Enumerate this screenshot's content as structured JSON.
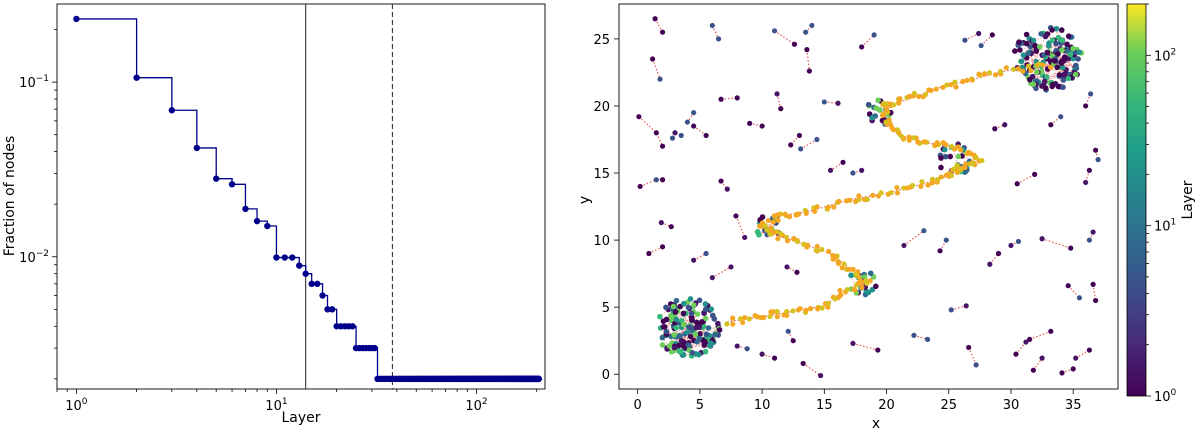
{
  "chart_data": [
    {
      "type": "line",
      "xlabel": "Layer",
      "ylabel": "Fraction of nodes",
      "x_scale": "log",
      "y_scale": "log",
      "xlim": [
        0.8,
        220
      ],
      "ylim": [
        0.00175,
        0.28
      ],
      "x_ticks": [
        {
          "value": 1,
          "label": "10",
          "exp": "0"
        },
        {
          "value": 10,
          "label": "10",
          "exp": "1"
        },
        {
          "value": 100,
          "label": "10",
          "exp": "2"
        }
      ],
      "y_ticks": [
        {
          "value": 0.01,
          "label": "10",
          "exp": "−2"
        },
        {
          "value": 0.1,
          "label": "10",
          "exp": "−1"
        }
      ],
      "series_color": "#00008b",
      "vlines": [
        {
          "x": 14,
          "style": "solid"
        },
        {
          "x": 38,
          "style": "dashed"
        }
      ],
      "points": [
        [
          1,
          0.23
        ],
        [
          2,
          0.106
        ],
        [
          3,
          0.069
        ],
        [
          4,
          0.042
        ],
        [
          5,
          0.028
        ],
        [
          6,
          0.026
        ],
        [
          7,
          0.0188
        ],
        [
          8,
          0.016
        ],
        [
          9,
          0.015
        ],
        [
          10,
          0.0099
        ],
        [
          11,
          0.0099
        ],
        [
          12,
          0.0099
        ],
        [
          13,
          0.0089
        ],
        [
          14,
          0.008
        ],
        [
          15,
          0.007
        ],
        [
          16,
          0.007
        ],
        [
          17,
          0.006
        ],
        [
          18,
          0.005
        ],
        [
          19,
          0.005
        ],
        [
          20,
          0.004
        ],
        [
          21,
          0.004
        ],
        [
          22,
          0.004
        ],
        [
          23,
          0.004
        ],
        [
          24,
          0.004
        ],
        [
          25,
          0.003
        ],
        [
          26,
          0.003
        ],
        [
          27,
          0.003
        ],
        [
          28,
          0.003
        ],
        [
          29,
          0.003
        ],
        [
          30,
          0.003
        ],
        [
          31,
          0.003
        ]
      ],
      "plateau": {
        "x_from": 32,
        "x_to": 205,
        "y": 0.002
      }
    },
    {
      "type": "scatter",
      "xlabel": "x",
      "ylabel": "y",
      "xlim": [
        -1.5,
        38.6
      ],
      "ylim": [
        -1.1,
        27.6
      ],
      "x_ticks": [
        0,
        5,
        10,
        15,
        20,
        25,
        30,
        35
      ],
      "y_ticks": [
        0,
        5,
        10,
        15,
        20,
        25
      ],
      "colorbar": {
        "label": "Layer",
        "scale": "log",
        "range": [
          1,
          200
        ],
        "colormap": "viridis",
        "ticks": [
          {
            "value": 1,
            "label": "10",
            "exp": "0"
          },
          {
            "value": 10,
            "label": "10",
            "exp": "1"
          },
          {
            "value": 100,
            "label": "10",
            "exp": "2"
          }
        ]
      },
      "edge_color": "#e8554e",
      "path_colors": [
        "#f5a623",
        "#d6c21f"
      ],
      "main_path": [
        [
          7.2,
          3.9
        ],
        [
          10,
          4.3
        ],
        [
          12,
          4.6
        ],
        [
          15,
          5.1
        ],
        [
          16.5,
          6.2
        ],
        [
          18.5,
          6.8
        ],
        [
          17,
          7.9
        ],
        [
          15.5,
          9
        ],
        [
          13,
          9.8
        ],
        [
          11,
          10.4
        ],
        [
          10,
          11.1
        ],
        [
          11.5,
          11.8
        ],
        [
          14,
          12.2
        ],
        [
          17,
          13
        ],
        [
          20,
          13.5
        ],
        [
          23,
          14.2
        ],
        [
          25,
          14.8
        ],
        [
          26,
          15.4
        ],
        [
          27.5,
          16
        ],
        [
          26,
          16.8
        ],
        [
          23,
          17.3
        ],
        [
          21,
          17.8
        ],
        [
          20,
          18.7
        ],
        [
          19.8,
          20.1
        ],
        [
          21.5,
          20.4
        ],
        [
          24,
          21.3
        ],
        [
          27,
          22
        ],
        [
          30,
          22.7
        ],
        [
          33.5,
          23.1
        ]
      ],
      "clusters": [
        {
          "center": [
            4,
            3.5
          ],
          "radius": 2.6,
          "count": 160
        },
        {
          "center": [
            33,
            23.5
          ],
          "radius": 2.8,
          "count": 170
        },
        {
          "center": [
            18,
            6.8
          ],
          "radius": 1.2,
          "count": 22
        },
        {
          "center": [
            19.5,
            19.5
          ],
          "radius": 1.2,
          "count": 20
        },
        {
          "center": [
            25.5,
            16
          ],
          "radius": 1.4,
          "count": 24
        },
        {
          "center": [
            10.5,
            11
          ],
          "radius": 1.2,
          "count": 16
        }
      ],
      "branches": [
        [
          [
            0.1,
            19.2
          ],
          [
            1.5,
            18
          ],
          [
            2,
            17
          ]
        ],
        [
          [
            1.4,
            26.5
          ],
          [
            2,
            25.5
          ]
        ],
        [
          [
            1.2,
            23.5
          ],
          [
            1.8,
            22
          ]
        ],
        [
          [
            0.2,
            14
          ],
          [
            1.5,
            14.5
          ],
          [
            2,
            14.5
          ]
        ],
        [
          [
            0.9,
            9
          ],
          [
            2,
            9.5
          ]
        ],
        [
          [
            1.9,
            11.3
          ],
          [
            2.7,
            11
          ]
        ],
        [
          [
            2.8,
            17.6
          ],
          [
            3,
            18
          ],
          [
            3.5,
            17.8
          ]
        ],
        [
          [
            4.5,
            18.5
          ],
          [
            5.5,
            17.8
          ]
        ],
        [
          [
            6,
            26
          ],
          [
            6.5,
            25
          ]
        ],
        [
          [
            6.7,
            20.5
          ],
          [
            8,
            20.6
          ]
        ],
        [
          [
            9,
            18.7
          ],
          [
            10,
            18.5
          ]
        ],
        [
          [
            11,
            25.6
          ],
          [
            12.6,
            24.6
          ]
        ],
        [
          [
            11.2,
            20.9
          ],
          [
            11.5,
            19.8
          ]
        ],
        [
          [
            13.1,
            16.8
          ],
          [
            14.4,
            17.5
          ]
        ],
        [
          [
            13.6,
            24.2
          ],
          [
            13.8,
            22.6
          ]
        ],
        [
          [
            15,
            20.3
          ],
          [
            16.1,
            20.2
          ]
        ],
        [
          [
            17.3,
            15
          ],
          [
            18,
            15.2
          ]
        ],
        [
          [
            13.5,
            25.5
          ],
          [
            14,
            26
          ]
        ],
        [
          [
            6.7,
            14.4
          ],
          [
            7.2,
            13.8
          ]
        ],
        [
          [
            7.9,
            11.8
          ],
          [
            8.6,
            10.2
          ]
        ],
        [
          [
            6,
            7.2
          ],
          [
            7.5,
            8
          ]
        ],
        [
          [
            4.5,
            8.5
          ],
          [
            5.5,
            9
          ]
        ],
        [
          [
            12.8,
            7.6
          ],
          [
            12,
            8
          ]
        ],
        [
          [
            10,
            1.5
          ],
          [
            11,
            1.2
          ]
        ],
        [
          [
            13.3,
            0.8
          ],
          [
            14.7,
            -0.1
          ]
        ],
        [
          [
            12.1,
            3.2
          ],
          [
            12.5,
            2.5
          ]
        ],
        [
          [
            17.3,
            2.3
          ],
          [
            19.3,
            1.8
          ]
        ],
        [
          [
            22.2,
            2.9
          ],
          [
            23.3,
            2.6
          ]
        ],
        [
          [
            26.6,
            2
          ],
          [
            27.2,
            0.7
          ]
        ],
        [
          [
            25.2,
            4.8
          ],
          [
            26.4,
            5.1
          ]
        ],
        [
          [
            28.3,
            8.2
          ],
          [
            29,
            9
          ]
        ],
        [
          [
            21.4,
            9.6
          ],
          [
            23,
            10.7
          ]
        ],
        [
          [
            24.3,
            9.2
          ],
          [
            24.8,
            10
          ]
        ],
        [
          [
            30,
            9.6
          ],
          [
            30.6,
            9.9
          ]
        ],
        [
          [
            32.5,
            10.1
          ],
          [
            34.8,
            9.4
          ]
        ],
        [
          [
            34.6,
            6.6
          ],
          [
            35.5,
            5.7
          ]
        ],
        [
          [
            36.6,
            6.7
          ],
          [
            36.8,
            5.5
          ]
        ],
        [
          [
            36.6,
            10.6
          ],
          [
            36.3,
            10
          ]
        ],
        [
          [
            30.5,
            14.2
          ],
          [
            31.9,
            14.9
          ]
        ],
        [
          [
            36.8,
            16.7
          ],
          [
            37,
            16
          ]
        ],
        [
          [
            36.3,
            15.2
          ],
          [
            36,
            14.3
          ]
        ],
        [
          [
            28.7,
            18.3
          ],
          [
            29.5,
            18.6
          ]
        ],
        [
          [
            33.2,
            18.6
          ],
          [
            34,
            19.2
          ]
        ],
        [
          [
            36.4,
            20.9
          ],
          [
            36,
            20
          ]
        ],
        [
          [
            27.6,
            24.5
          ],
          [
            28.5,
            25.3
          ]
        ],
        [
          [
            26.3,
            24.9
          ],
          [
            27.4,
            25.4
          ]
        ],
        [
          [
            31.5,
            2.6
          ],
          [
            33.2,
            3.2
          ]
        ],
        [
          [
            35.2,
            1.2
          ],
          [
            36.3,
            1.8
          ]
        ],
        [
          [
            31.8,
            0.3
          ],
          [
            32.5,
            1.2
          ]
        ],
        [
          [
            34.1,
            0.1
          ],
          [
            35,
            0.4
          ]
        ],
        [
          [
            30.4,
            1.5
          ],
          [
            31.2,
            2.4
          ]
        ],
        [
          [
            18,
            24.4
          ],
          [
            19,
            25.3
          ]
        ],
        [
          [
            16.5,
            15.8
          ],
          [
            15.5,
            15.2
          ]
        ],
        [
          [
            4.5,
            19.5
          ],
          [
            4,
            18.8
          ]
        ],
        [
          [
            8,
            2.1
          ],
          [
            8.8,
            1.9
          ]
        ],
        [
          [
            13,
            17.8
          ],
          [
            12.3,
            17.1
          ]
        ]
      ]
    }
  ]
}
